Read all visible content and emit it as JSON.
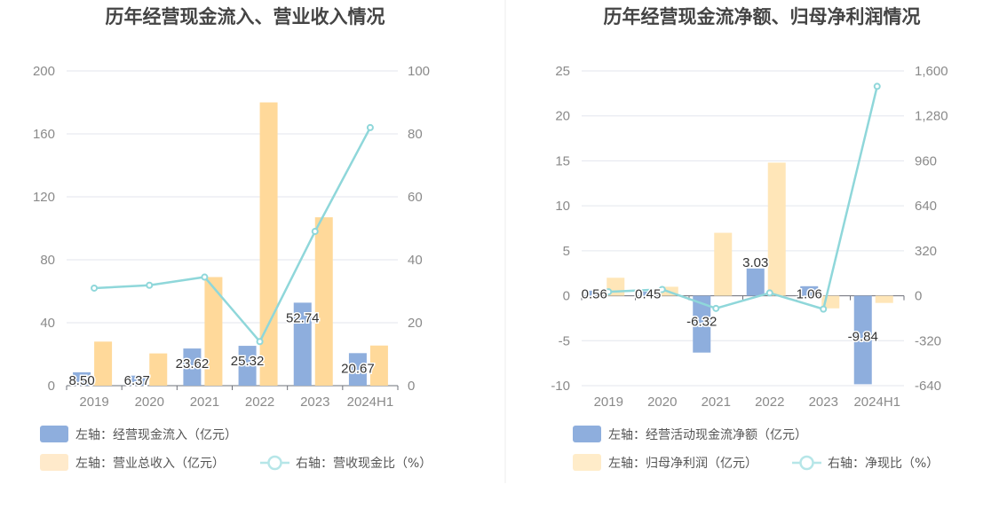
{
  "chart_data": [
    {
      "type": "bar",
      "title": "历年经营现金流入、营业收入情况",
      "categories": [
        "2019",
        "2020",
        "2021",
        "2022",
        "2023",
        "2024H1"
      ],
      "y_left": {
        "ylim": [
          0,
          200
        ],
        "ticks": [
          "0",
          "40",
          "80",
          "120",
          "160",
          "200"
        ]
      },
      "y_right": {
        "ylim": [
          0,
          100
        ],
        "ticks": [
          "0",
          "20",
          "40",
          "60",
          "80",
          "100"
        ]
      },
      "series": [
        {
          "name": "左轴：经营现金流入（亿元）",
          "type": "bar",
          "axis": "left",
          "color": "#8eaedd",
          "values": [
            8.5,
            6.37,
            23.62,
            25.32,
            52.74,
            20.67
          ],
          "labels": [
            "8.50",
            "6.37",
            "23.62",
            "25.32",
            "52.74",
            "20.67"
          ]
        },
        {
          "name": "左轴：营业总收入（亿元）",
          "type": "bar",
          "axis": "left",
          "color": "#ffd99a",
          "values": [
            28,
            20.5,
            69,
            180,
            107,
            25.5
          ]
        },
        {
          "name": "右轴：营收现金比（%）",
          "type": "line",
          "axis": "right",
          "color": "#8fd7da",
          "values": [
            31,
            31.9,
            34.5,
            14,
            49,
            82
          ]
        }
      ]
    },
    {
      "type": "bar",
      "title": "历年经营现金流净额、归母净利润情况",
      "categories": [
        "2019",
        "2020",
        "2021",
        "2022",
        "2023",
        "2024H1"
      ],
      "y_left": {
        "ylim": [
          -10,
          25
        ],
        "ticks": [
          "-10",
          "-5",
          "0",
          "5",
          "10",
          "15",
          "20",
          "25"
        ]
      },
      "y_right": {
        "ylim": [
          -640,
          1600
        ],
        "ticks": [
          "-640",
          "-320",
          "0",
          "320",
          "640",
          "960",
          "1,280",
          "1,600"
        ]
      },
      "series": [
        {
          "name": "左轴：经营活动现金流净额（亿元）",
          "type": "bar",
          "axis": "left",
          "color": "#8eaedd",
          "values": [
            0.56,
            0.45,
            -6.32,
            3.03,
            1.06,
            -9.84
          ],
          "labels": [
            "0.56",
            "0.45",
            "-6.32",
            "3.03",
            "1.06",
            "-9.84"
          ]
        },
        {
          "name": "左轴：归母净利润（亿元）",
          "type": "bar",
          "axis": "left",
          "color": "#ffe6b8",
          "values": [
            2.0,
            1.0,
            7.0,
            14.8,
            -1.4,
            -0.8
          ]
        },
        {
          "name": "右轴：净现比（%）",
          "type": "line",
          "axis": "right",
          "color": "#8fd7da",
          "values": [
            28,
            45,
            -90,
            20,
            -95,
            1490
          ]
        }
      ]
    }
  ]
}
